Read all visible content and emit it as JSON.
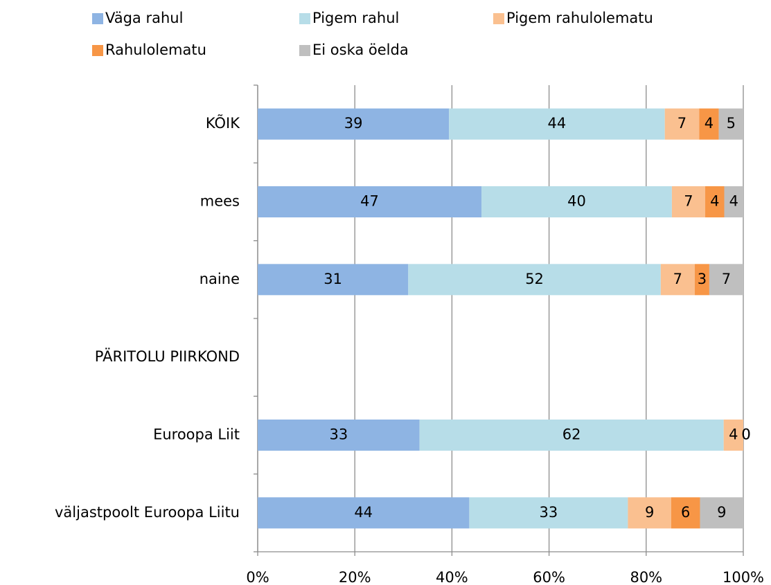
{
  "chart_data": {
    "type": "bar",
    "orientation": "horizontal",
    "stacking": "percent",
    "categories": [
      "KÕIK",
      "mees",
      "naine",
      "PÄRITOLU PIIRKOND",
      "Euroopa Liit",
      "väljastpoolt Euroopa Liitu"
    ],
    "series": [
      {
        "name": "Väga rahul",
        "color": "#8eb4e3",
        "values": [
          39,
          47,
          31,
          null,
          33,
          44
        ]
      },
      {
        "name": "Pigem rahul",
        "color": "#b7dde8",
        "values": [
          44,
          40,
          52,
          null,
          62,
          33
        ]
      },
      {
        "name": "Pigem rahulolematu",
        "color": "#fac090",
        "values": [
          7,
          7,
          7,
          null,
          4,
          9
        ]
      },
      {
        "name": "Rahulolematu",
        "color": "#f79646",
        "values": [
          4,
          4,
          3,
          null,
          0,
          6
        ]
      },
      {
        "name": "Ei oska öelda",
        "color": "#bfbfbf",
        "values": [
          5,
          4,
          7,
          null,
          0,
          9
        ]
      }
    ],
    "xlim": [
      0,
      100
    ],
    "xticks": [
      {
        "value": 0,
        "label": "0%"
      },
      {
        "value": 20,
        "label": "20%"
      },
      {
        "value": 40,
        "label": "40%"
      },
      {
        "value": 60,
        "label": "60%"
      },
      {
        "value": 80,
        "label": "80%"
      },
      {
        "value": 100,
        "label": "100%"
      }
    ],
    "grid": true,
    "legend": "top"
  }
}
